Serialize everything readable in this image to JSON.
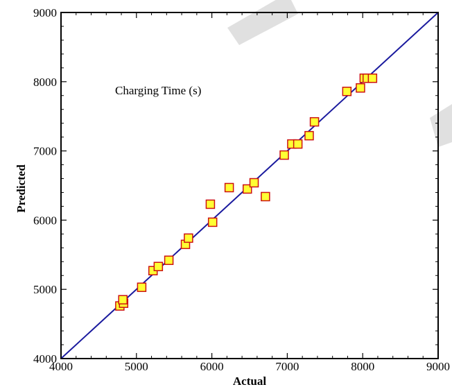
{
  "chart_data": {
    "type": "scatter",
    "title": "",
    "annotation": "Charging Time (s)",
    "xlabel": "Actual",
    "ylabel": "Predicted",
    "xlim": [
      4000,
      9000
    ],
    "ylim": [
      4000,
      9000
    ],
    "xticks": [
      4000,
      5000,
      6000,
      7000,
      8000,
      9000
    ],
    "yticks": [
      4000,
      5000,
      6000,
      7000,
      8000,
      9000
    ],
    "grid": false,
    "legend": "none",
    "reference_line": {
      "from": [
        4000,
        4000
      ],
      "to": [
        9000,
        9000
      ],
      "color": "#1a1a9e"
    },
    "marker": {
      "shape": "square",
      "fill": "#ffff33",
      "edge": "#cc1111"
    },
    "points": [
      {
        "x": 4780,
        "y": 4760
      },
      {
        "x": 4830,
        "y": 4800
      },
      {
        "x": 4820,
        "y": 4850
      },
      {
        "x": 5070,
        "y": 5030
      },
      {
        "x": 5220,
        "y": 5270
      },
      {
        "x": 5290,
        "y": 5330
      },
      {
        "x": 5430,
        "y": 5420
      },
      {
        "x": 5650,
        "y": 5650
      },
      {
        "x": 5690,
        "y": 5740
      },
      {
        "x": 5980,
        "y": 6230
      },
      {
        "x": 6010,
        "y": 5970
      },
      {
        "x": 6230,
        "y": 6470
      },
      {
        "x": 6470,
        "y": 6450
      },
      {
        "x": 6560,
        "y": 6540
      },
      {
        "x": 6710,
        "y": 6340
      },
      {
        "x": 6960,
        "y": 6940
      },
      {
        "x": 7060,
        "y": 7100
      },
      {
        "x": 7140,
        "y": 7100
      },
      {
        "x": 7290,
        "y": 7220
      },
      {
        "x": 7360,
        "y": 7420
      },
      {
        "x": 7790,
        "y": 7860
      },
      {
        "x": 7970,
        "y": 7910
      },
      {
        "x": 8020,
        "y": 8050
      },
      {
        "x": 8060,
        "y": 8050
      },
      {
        "x": 8130,
        "y": 8050
      }
    ]
  }
}
